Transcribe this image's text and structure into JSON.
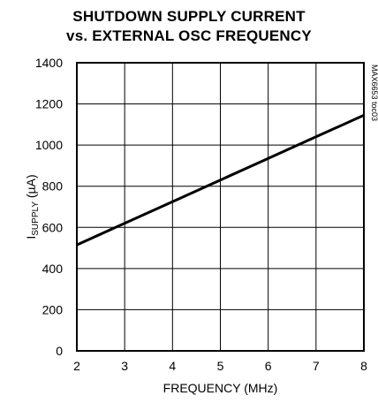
{
  "chart_data": {
    "type": "line",
    "title": [
      "SHUTDOWN SUPPLY CURRENT",
      "vs. EXTERNAL OSC FREQUENCY"
    ],
    "xlabel": "FREQUENCY (MHz)",
    "ylabel": {
      "main": "I",
      "sub": "SUPPLY",
      "rest": " (µA)"
    },
    "xlim": [
      2,
      8
    ],
    "ylim": [
      0,
      1400
    ],
    "xticks": [
      "2",
      "3",
      "4",
      "5",
      "6",
      "7",
      "8"
    ],
    "yticks": [
      "0",
      "200",
      "400",
      "600",
      "800",
      "1000",
      "1200",
      "1400"
    ],
    "grid": true,
    "figure_code": "MAX6653 toc03",
    "series": [
      {
        "x": [
          2,
          3,
          4,
          5,
          6,
          7,
          8
        ],
        "y": [
          515,
          620,
          725,
          830,
          935,
          1040,
          1145
        ]
      }
    ]
  }
}
